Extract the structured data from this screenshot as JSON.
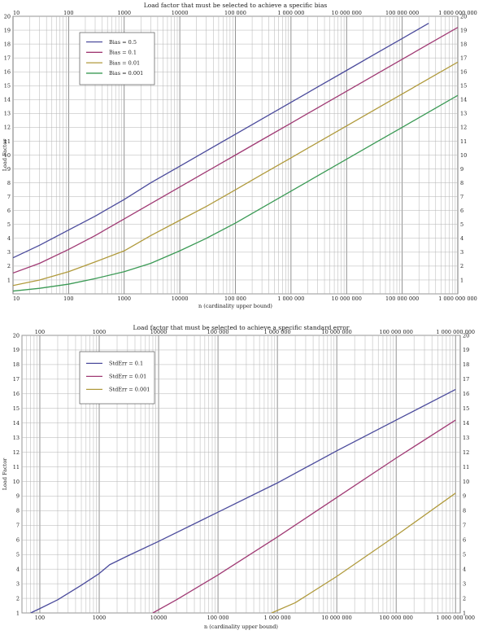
{
  "chart_data": [
    {
      "type": "line",
      "title": "Load factor that must be selected to achieve a specific bias",
      "xlabel": "n (cardinality upper bound)",
      "ylabel": "Load Factor",
      "xscale": "log",
      "xlim": [
        10,
        1000000000
      ],
      "ylim": [
        0,
        20
      ],
      "grid": true,
      "legend_position": "top-left",
      "x_tick_labels": [
        "10",
        "100",
        "1000",
        "10000",
        "100 000",
        "1 000 000",
        "10 000 000",
        "100 000 000",
        "1 000 000 000"
      ],
      "y_tick_labels": [
        "1",
        "2",
        "3",
        "4",
        "5",
        "6",
        "7",
        "8",
        "9",
        "10",
        "11",
        "12",
        "13",
        "14",
        "15",
        "16",
        "17",
        "18",
        "19",
        "20"
      ],
      "x": [
        10,
        30,
        100,
        300,
        1000,
        3000,
        10000,
        30000,
        100000,
        300000,
        1000000,
        3000000,
        10000000,
        30000000,
        100000000,
        300000000,
        1000000000
      ],
      "series": [
        {
          "name": "Bias = 0.5",
          "color": "#4b4b9c",
          "values": [
            2.6,
            3.5,
            4.6,
            5.6,
            6.8,
            8.0,
            9.2,
            10.3,
            11.5,
            12.6,
            13.8,
            14.9,
            16.1,
            17.2,
            18.4,
            19.5,
            null
          ]
        },
        {
          "name": "Bias = 0.1",
          "color": "#a03a74",
          "values": [
            1.5,
            2.2,
            3.2,
            4.2,
            5.4,
            6.5,
            7.7,
            8.8,
            10.0,
            11.1,
            12.3,
            13.4,
            14.6,
            15.7,
            16.9,
            18.0,
            19.2
          ]
        },
        {
          "name": "Bias = 0.01",
          "color": "#b09a3c",
          "values": [
            0.6,
            1.0,
            1.6,
            2.3,
            3.1,
            4.2,
            5.3,
            6.3,
            7.5,
            8.6,
            9.8,
            10.9,
            12.1,
            13.2,
            14.4,
            15.5,
            16.7
          ]
        },
        {
          "name": "Bias = 0.001",
          "color": "#3b9a55",
          "values": [
            0.2,
            0.4,
            0.7,
            1.1,
            1.6,
            2.2,
            3.1,
            4.0,
            5.1,
            6.2,
            7.4,
            8.5,
            9.7,
            10.8,
            12.0,
            13.1,
            14.3
          ]
        }
      ]
    },
    {
      "type": "line",
      "title": "Load factor that must be selected to achieve a specific standard error",
      "xlabel": "n (cardinality upper bound)",
      "ylabel": "Load Factor",
      "xscale": "log",
      "xlim": [
        50,
        1200000000
      ],
      "ylim": [
        1,
        20
      ],
      "grid": true,
      "legend_position": "top-left",
      "x_tick_labels": [
        "100",
        "1000",
        "10000",
        "100 000",
        "1 000 000",
        "10 000 000",
        "100 000 000",
        "1 000 000 000"
      ],
      "y_tick_labels": [
        "1",
        "2",
        "3",
        "4",
        "5",
        "6",
        "7",
        "8",
        "9",
        "10",
        "11",
        "12",
        "13",
        "14",
        "15",
        "16",
        "17",
        "18",
        "19",
        "20"
      ],
      "series": [
        {
          "name": "StdErr = 0.1",
          "color": "#4b4b9c",
          "x": [
            70,
            100,
            200,
            500,
            1000,
            1500,
            3000,
            10000,
            100000,
            1000000,
            10000000,
            100000000,
            1000000000
          ],
          "values": [
            1.0,
            1.3,
            1.9,
            2.9,
            3.7,
            4.3,
            4.9,
            5.9,
            7.9,
            9.9,
            12.1,
            14.2,
            16.3
          ]
        },
        {
          "name": "StdErr = 0.01",
          "color": "#a03a74",
          "x": [
            8000,
            20000,
            100000,
            1000000,
            10000000,
            100000000,
            1000000000
          ],
          "values": [
            1.0,
            1.9,
            3.6,
            6.2,
            8.9,
            11.6,
            14.2
          ]
        },
        {
          "name": "StdErr = 0.001",
          "color": "#b09a3c",
          "x": [
            800000,
            2000000,
            10000000,
            100000000,
            1000000000
          ],
          "values": [
            1.0,
            1.7,
            3.5,
            6.3,
            9.2
          ]
        }
      ]
    }
  ]
}
